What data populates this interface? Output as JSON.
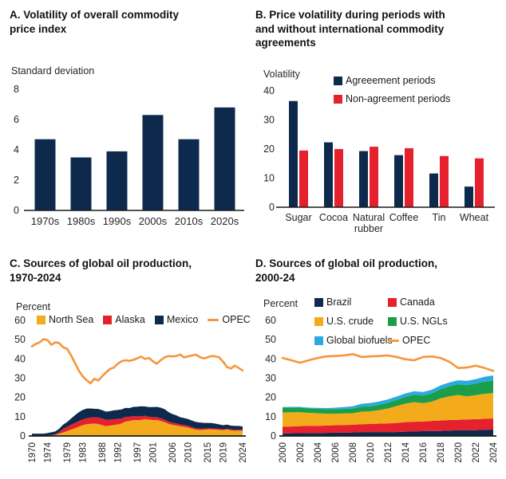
{
  "colors": {
    "navy": "#0d2a4d",
    "red": "#e5212e",
    "gold": "#f4ab1b",
    "green": "#1a9e49",
    "sky": "#2baae1",
    "orange": "#f6953b",
    "axis_line": "#1a1a1a",
    "tick_text": "#262626"
  },
  "chart_data": [
    {
      "id": "A",
      "type": "bar",
      "title": "A. Volatility of overall commodity\nprice index",
      "ylabel": "Standard deviation",
      "categories": [
        "1970s",
        "1980s",
        "1990s",
        "2000s",
        "2010s",
        "2020s"
      ],
      "values": [
        4.7,
        3.5,
        3.9,
        6.3,
        4.7,
        6.8
      ],
      "bar_color": "navy",
      "ylim": [
        0,
        8
      ],
      "yticks": [
        0,
        2,
        4,
        6,
        8
      ],
      "grid": false,
      "legend_position": "none"
    },
    {
      "id": "B",
      "type": "bar",
      "title": "B. Price volatility during periods with\nand without international commodity\nagreements",
      "ylabel": "Volatility",
      "categories": [
        "Sugar",
        "Cocoa",
        "Natural rubber",
        "Coffee",
        "Tin",
        "Wheat"
      ],
      "series": [
        {
          "name": "Agreeement periods",
          "color": "navy",
          "values": [
            36.5,
            22.3,
            19.3,
            17.9,
            11.6,
            7.1
          ]
        },
        {
          "name": "Non-agreement periods",
          "color": "red",
          "values": [
            19.5,
            20.0,
            20.8,
            20.3,
            17.6,
            16.8
          ]
        }
      ],
      "ylim": [
        0,
        40
      ],
      "yticks": [
        0,
        10,
        20,
        30,
        40
      ],
      "grid": false,
      "legend_position": "top-right-inside"
    },
    {
      "id": "C",
      "type": "area",
      "title": "C. Sources of global oil production,\n1970-2024",
      "ylabel": "Percent",
      "x": [
        1970,
        1971,
        1972,
        1973,
        1974,
        1975,
        1976,
        1977,
        1978,
        1979,
        1980,
        1981,
        1982,
        1983,
        1984,
        1985,
        1986,
        1987,
        1988,
        1989,
        1990,
        1991,
        1992,
        1993,
        1994,
        1995,
        1996,
        1997,
        1998,
        1999,
        2000,
        2001,
        2002,
        2003,
        2004,
        2005,
        2006,
        2007,
        2008,
        2009,
        2010,
        2011,
        2012,
        2013,
        2014,
        2015,
        2016,
        2017,
        2018,
        2019,
        2020,
        2021,
        2022,
        2023,
        2024
      ],
      "series": [
        {
          "name": "North Sea",
          "color": "gold",
          "values": [
            0.0,
            0.0,
            0.0,
            0.0,
            0.1,
            0.3,
            0.6,
            1.2,
            1.8,
            2.5,
            3.3,
            4.0,
            4.8,
            5.6,
            6.1,
            6.3,
            6.4,
            6.2,
            5.6,
            5.1,
            5.4,
            5.7,
            6.0,
            6.5,
            7.5,
            7.8,
            8.2,
            8.2,
            8.3,
            8.8,
            8.5,
            8.3,
            8.3,
            7.8,
            7.2,
            6.3,
            5.8,
            5.5,
            5.0,
            4.8,
            4.4,
            3.8,
            3.3,
            3.1,
            3.2,
            3.4,
            3.4,
            3.3,
            3.1,
            3.0,
            3.3,
            2.9,
            2.7,
            2.8,
            2.7
          ]
        },
        {
          "name": "Alaska",
          "color": "red",
          "values": [
            0.2,
            0.2,
            0.2,
            0.2,
            0.2,
            0.2,
            0.2,
            0.8,
            1.9,
            2.2,
            2.5,
            2.7,
            2.9,
            3.0,
            3.1,
            3.2,
            3.3,
            3.4,
            3.5,
            3.3,
            3.1,
            3.0,
            2.9,
            2.6,
            2.4,
            2.2,
            2.1,
            2.0,
            1.9,
            1.7,
            1.5,
            1.5,
            1.5,
            1.4,
            1.3,
            1.2,
            1.1,
            1.0,
            1.0,
            0.9,
            0.9,
            0.8,
            0.7,
            0.7,
            0.6,
            0.6,
            0.6,
            0.6,
            0.6,
            0.5,
            0.5,
            0.5,
            0.5,
            0.5,
            0.4
          ]
        },
        {
          "name": "Mexico",
          "color": "navy",
          "values": [
            1.0,
            1.0,
            1.0,
            1.0,
            1.2,
            1.4,
            1.6,
            1.8,
            2.2,
            2.5,
            3.2,
            4.0,
            4.6,
            4.9,
            5.0,
            4.8,
            4.4,
            4.4,
            4.3,
            4.2,
            4.4,
            4.6,
            4.6,
            4.7,
            4.7,
            4.5,
            4.8,
            5.0,
            5.2,
            4.8,
            5.0,
            5.2,
            5.3,
            5.5,
            5.4,
            4.9,
            4.5,
            4.2,
            3.7,
            3.6,
            3.5,
            3.4,
            3.3,
            3.2,
            3.0,
            2.8,
            2.7,
            2.5,
            2.3,
            2.1,
            2.1,
            2.0,
            2.0,
            1.9,
            1.8
          ]
        }
      ],
      "line": {
        "name": "OPEC",
        "color": "orange",
        "values": [
          46.5,
          47.8,
          48.6,
          50.3,
          49.8,
          47.3,
          48.6,
          48.2,
          46.0,
          45.3,
          42.0,
          38.0,
          34.0,
          31.0,
          29.0,
          27.3,
          29.7,
          28.8,
          31.0,
          33.0,
          34.8,
          35.5,
          37.5,
          38.8,
          39.3,
          39.0,
          39.5,
          40.3,
          41.2,
          40.0,
          40.5,
          38.8,
          37.5,
          39.3,
          40.8,
          41.5,
          41.3,
          41.5,
          42.3,
          40.8,
          41.3,
          41.8,
          42.2,
          41.0,
          40.3,
          40.8,
          41.5,
          41.3,
          40.8,
          38.5,
          35.8,
          35.0,
          36.5,
          35.3,
          34.0
        ]
      },
      "ylim": [
        0,
        60
      ],
      "yticks": [
        0,
        10,
        20,
        30,
        40,
        50,
        60
      ],
      "xticks": [
        1970,
        1974,
        1979,
        1983,
        1988,
        1992,
        1997,
        2001,
        2006,
        2010,
        2015,
        2019,
        2024
      ],
      "grid": false,
      "legend_position": "top-row-inside"
    },
    {
      "id": "D",
      "type": "area",
      "title": "D. Sources of global oil production,\n2000-24",
      "ylabel": "Percent",
      "x": [
        2000,
        2001,
        2002,
        2003,
        2004,
        2005,
        2006,
        2007,
        2008,
        2009,
        2010,
        2011,
        2012,
        2013,
        2014,
        2015,
        2016,
        2017,
        2018,
        2019,
        2020,
        2021,
        2022,
        2023,
        2024
      ],
      "series": [
        {
          "name": "Brazil",
          "color": "navy",
          "values": [
            1.3,
            1.4,
            1.5,
            1.5,
            1.5,
            1.6,
            1.7,
            1.7,
            1.8,
            2.0,
            2.0,
            2.0,
            2.0,
            2.0,
            2.2,
            2.4,
            2.5,
            2.6,
            2.6,
            2.8,
            3.0,
            3.0,
            3.0,
            3.2,
            3.3
          ]
        },
        {
          "name": "Canada",
          "color": "red",
          "values": [
            3.4,
            3.5,
            3.6,
            3.7,
            3.8,
            3.8,
            3.9,
            4.0,
            4.0,
            4.1,
            4.2,
            4.4,
            4.5,
            4.8,
            5.0,
            5.0,
            5.0,
            5.2,
            5.4,
            5.5,
            5.4,
            5.6,
            5.7,
            5.7,
            5.8
          ]
        },
        {
          "name": "U.S. crude",
          "color": "gold",
          "values": [
            7.5,
            7.4,
            7.2,
            6.8,
            6.5,
            6.2,
            6.0,
            6.0,
            6.0,
            6.5,
            6.6,
            7.0,
            7.8,
            8.7,
            9.6,
            10.2,
            9.5,
            10.0,
            11.5,
            12.3,
            12.9,
            12.0,
            12.5,
            13.0,
            13.2
          ]
        },
        {
          "name": "U.S. NGLs",
          "color": "green",
          "values": [
            2.5,
            2.5,
            2.4,
            2.3,
            2.3,
            2.3,
            2.3,
            2.3,
            2.4,
            2.6,
            2.6,
            2.8,
            3.0,
            3.2,
            3.5,
            3.8,
            4.0,
            4.3,
            4.8,
            5.2,
            5.6,
            5.8,
            6.0,
            6.3,
            6.5
          ]
        },
        {
          "name": "Global biofuels",
          "color": "sky",
          "values": [
            0.3,
            0.3,
            0.4,
            0.4,
            0.5,
            0.6,
            0.8,
            1.0,
            1.2,
            1.5,
            1.7,
            1.7,
            1.7,
            1.8,
            1.8,
            1.8,
            1.8,
            1.9,
            2.0,
            2.0,
            2.0,
            2.2,
            2.3,
            2.5,
            2.6
          ]
        }
      ],
      "line": {
        "name": "OPEC",
        "color": "orange",
        "values": [
          40.5,
          39.3,
          38.0,
          39.3,
          40.5,
          41.3,
          41.5,
          41.8,
          42.5,
          41.0,
          41.3,
          41.5,
          41.8,
          41.0,
          39.8,
          39.3,
          41.0,
          41.3,
          40.5,
          38.5,
          35.3,
          35.5,
          36.5,
          35.3,
          33.8
        ]
      },
      "ylim": [
        0,
        60
      ],
      "yticks": [
        0,
        10,
        20,
        30,
        40,
        50,
        60
      ],
      "xticks": [
        2000,
        2002,
        2004,
        2006,
        2008,
        2010,
        2012,
        2014,
        2016,
        2018,
        2020,
        2022,
        2024
      ],
      "grid": false,
      "legend_position": "top-grid-inside"
    }
  ]
}
